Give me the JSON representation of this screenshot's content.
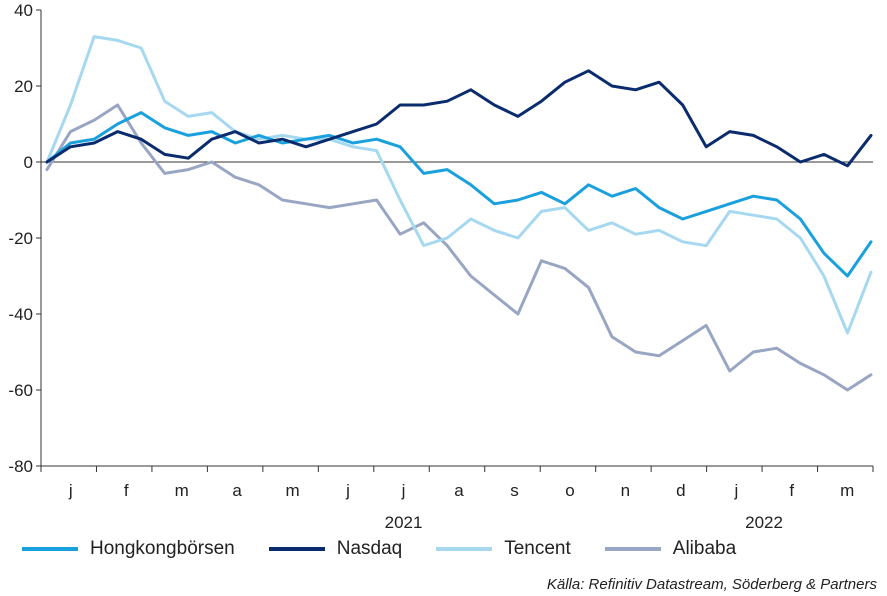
{
  "chart_data": {
    "type": "line",
    "title": "",
    "ylim": [
      -80,
      40
    ],
    "yticks": [
      40,
      20,
      0,
      -20,
      -40,
      -60,
      -80
    ],
    "month_labels": [
      "j",
      "f",
      "m",
      "a",
      "m",
      "j",
      "j",
      "a",
      "s",
      "o",
      "n",
      "d",
      "j",
      "f",
      "m"
    ],
    "year_labels": [
      "2021",
      "2022"
    ],
    "grid": false,
    "legend_position": "bottom",
    "colors": {
      "hk": "#1aa0dc",
      "nasdaq": "#0a2c6e",
      "tencent": "#a6d8f0",
      "alibaba": "#98a6c4"
    },
    "x": [
      0,
      2,
      4,
      6,
      8,
      10,
      12,
      14,
      16,
      18,
      20,
      22,
      24,
      26,
      28,
      30,
      32,
      34,
      36,
      38,
      40,
      42,
      44,
      46,
      48,
      50,
      52,
      54,
      56,
      58,
      60,
      62,
      64,
      66,
      68,
      70
    ],
    "series": [
      {
        "name": "Hongkongbörsen",
        "color": "#1aa0dc",
        "values": [
          0,
          5,
          6,
          10,
          13,
          9,
          7,
          8,
          5,
          7,
          5,
          6,
          7,
          5,
          6,
          4,
          -3,
          -2,
          -6,
          -11,
          -10,
          -8,
          -11,
          -6,
          -9,
          -7,
          -12,
          -15,
          -13,
          -11,
          -9,
          -10,
          -15,
          -24,
          -30,
          -21
        ]
      },
      {
        "name": "Nasdaq",
        "color": "#0a2c6e",
        "values": [
          0,
          4,
          5,
          8,
          6,
          2,
          1,
          6,
          8,
          5,
          6,
          4,
          6,
          8,
          10,
          15,
          15,
          16,
          19,
          15,
          12,
          16,
          21,
          24,
          20,
          19,
          21,
          15,
          4,
          8,
          7,
          4,
          0,
          2,
          -1,
          7
        ]
      },
      {
        "name": "Tencent",
        "color": "#a6d8f0",
        "values": [
          0,
          15,
          33,
          32,
          30,
          16,
          12,
          13,
          8,
          6,
          7,
          6,
          6,
          4,
          3,
          -10,
          -22,
          -20,
          -15,
          -18,
          -20,
          -13,
          -12,
          -18,
          -16,
          -19,
          -18,
          -21,
          -22,
          -13,
          -14,
          -15,
          -20,
          -30,
          -45,
          -29
        ]
      },
      {
        "name": "Alibaba",
        "color": "#98a6c4",
        "values": [
          -2,
          8,
          11,
          15,
          5,
          -3,
          -2,
          0,
          -4,
          -6,
          -10,
          -11,
          -12,
          -11,
          -10,
          -19,
          -16,
          -22,
          -30,
          -35,
          -40,
          -26,
          -28,
          -33,
          -46,
          -50,
          -51,
          -47,
          -43,
          -55,
          -50,
          -49,
          -53,
          -56,
          -60,
          -56
        ]
      }
    ]
  },
  "legend": [
    {
      "label": "Hongkongbörsen",
      "color": "#1aa0dc"
    },
    {
      "label": "Nasdaq",
      "color": "#0a2c6e"
    },
    {
      "label": "Tencent",
      "color": "#a6d8f0"
    },
    {
      "label": "Alibaba",
      "color": "#98a6c4"
    }
  ],
  "source": "Källa: Refinitiv Datastream, Söderberg & Partners"
}
